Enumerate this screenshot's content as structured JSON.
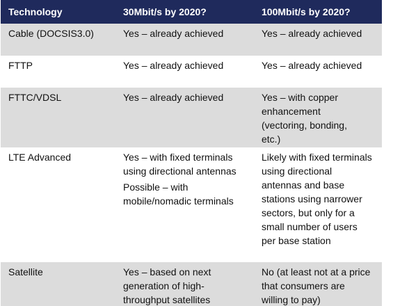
{
  "table": {
    "headers": [
      "Technology",
      "30Mbit/s by 2020?",
      "100Mbit/s by 2020?"
    ],
    "rows": [
      {
        "technology": "Cable (DOCSIS3.0)",
        "mbit30": [
          "Yes – already achieved"
        ],
        "mbit100": [
          "Yes – already achieved"
        ]
      },
      {
        "technology": "FTTP",
        "mbit30": [
          "Yes – already achieved"
        ],
        "mbit100": [
          "Yes – already achieved"
        ]
      },
      {
        "technology": "FTTC/VDSL",
        "mbit30": [
          "Yes – already achieved"
        ],
        "mbit100": [
          "Yes – with copper enhancement (vectoring, bonding, etc.)"
        ]
      },
      {
        "technology": "LTE Advanced",
        "mbit30": [
          "Yes – with fixed terminals using directional antennas",
          "Possible – with mobile/nomadic terminals"
        ],
        "mbit100": [
          "Likely with fixed terminals using directional antennas and base stations using narrower sectors, but only for a small number of users per base station"
        ]
      },
      {
        "technology": "Satellite",
        "mbit30": [
          "Yes – based on next generation of high-throughput satellites"
        ],
        "mbit100": [
          "No (at least not at a price that consumers are willing to pay)"
        ]
      }
    ]
  }
}
